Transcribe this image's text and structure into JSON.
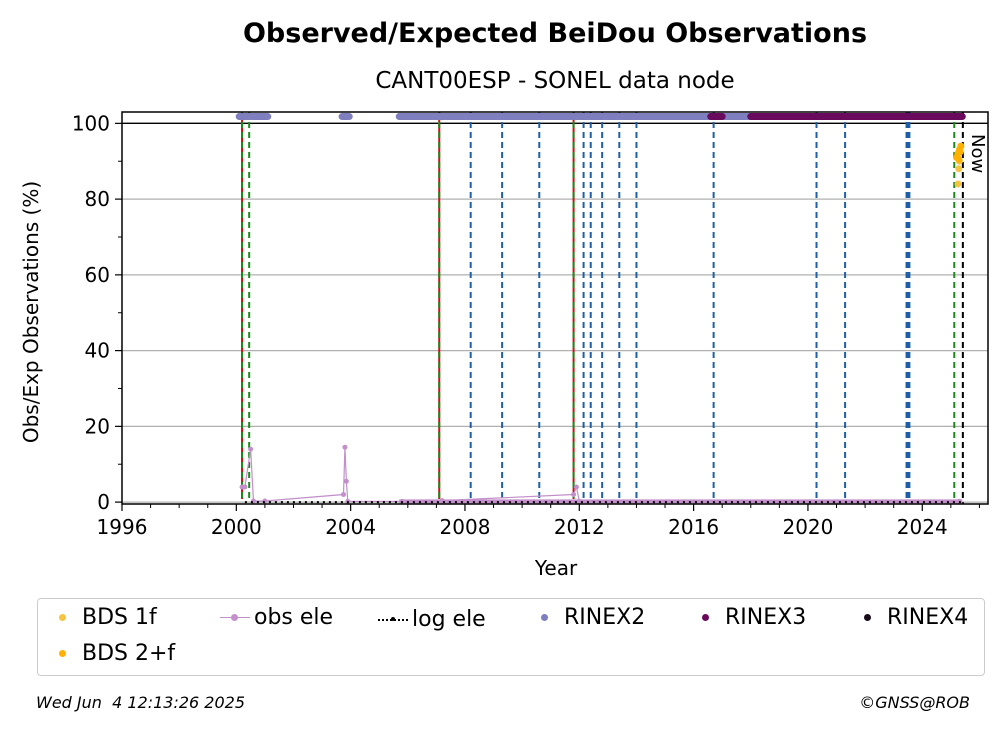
{
  "chart_data": {
    "type": "scatter",
    "title": "Observed/Expected BeiDou Observations",
    "subtitle": "CANT00ESP - SONEL data node",
    "xlabel": "Year",
    "ylabel": "Obs/Exp Observations (%)",
    "xlim": [
      1996,
      2026.3
    ],
    "ylim": [
      -0.5,
      103
    ],
    "x_ticks": [
      1996,
      2000,
      2004,
      2008,
      2012,
      2016,
      2020,
      2024
    ],
    "y_ticks": [
      0,
      20,
      40,
      60,
      80,
      100
    ],
    "grid": "horizontal",
    "now_label": "Now",
    "now_x": 2025.42,
    "vlines_green": [
      2000.45,
      2025.12
    ],
    "vlines_red_green": [
      2000.2,
      2007.1,
      2011.8
    ],
    "vlines_blue": [
      2008.2,
      2009.3,
      2010.6,
      2012.15,
      2012.4,
      2012.8,
      2013.4,
      2014.0,
      2016.7,
      2020.3,
      2021.3,
      2023.45,
      2023.5,
      2023.55
    ],
    "series": [
      {
        "name": "BDS 1f",
        "color": "#f5c542",
        "points": [
          [
            2025.25,
            84
          ],
          [
            2025.28,
            88
          ],
          [
            2025.3,
            90
          ]
        ]
      },
      {
        "name": "obs ele",
        "color": "#c28fcb",
        "points": [
          [
            2000.2,
            4
          ],
          [
            2000.3,
            4
          ],
          [
            2000.5,
            14
          ],
          [
            2000.6,
            0.3
          ],
          [
            2001.0,
            0.3
          ],
          [
            2003.75,
            2
          ],
          [
            2003.8,
            14.5
          ],
          [
            2003.85,
            5.5
          ],
          [
            2003.9,
            0.2
          ],
          [
            2005.8,
            0.2
          ],
          [
            2007.2,
            0.4
          ],
          [
            2011.8,
            2
          ],
          [
            2011.9,
            4
          ],
          [
            2012.0,
            0.2
          ],
          [
            2025.3,
            0.2
          ]
        ]
      },
      {
        "name": "log ele",
        "color": "#000000",
        "points": [
          [
            2000.3,
            0
          ],
          [
            2025.4,
            0
          ]
        ]
      },
      {
        "name": "RINEX2",
        "color": "#7f7fbf",
        "ranges": [
          [
            2000.1,
            2001.1
          ],
          [
            2003.7,
            2003.95
          ],
          [
            2005.7,
            2018.2
          ]
        ],
        "y": 101.8
      },
      {
        "name": "RINEX3",
        "color": "#6a0a5c",
        "ranges": [
          [
            2016.6,
            2017.0
          ],
          [
            2018.0,
            2025.4
          ]
        ],
        "y": 101.8
      },
      {
        "name": "RINEX4",
        "color": "#1a0b1a",
        "ranges": [],
        "y": 101.8
      },
      {
        "name": "BDS 2+f",
        "color": "#ffb000",
        "points": [
          [
            2025.2,
            91
          ],
          [
            2025.25,
            92
          ],
          [
            2025.3,
            93
          ],
          [
            2025.35,
            94
          ],
          [
            2025.28,
            90.5
          ],
          [
            2025.33,
            92.5
          ]
        ]
      }
    ]
  },
  "legend": {
    "items": [
      {
        "label": "BDS 1f",
        "color": "#f5c542",
        "kind": "dot"
      },
      {
        "label": "obs ele",
        "color": "#c28fcb",
        "kind": "line-dot"
      },
      {
        "label": "log ele",
        "color": "#000000",
        "kind": "dotted"
      },
      {
        "label": "RINEX2",
        "color": "#7f7fbf",
        "kind": "dot"
      },
      {
        "label": "RINEX3",
        "color": "#6a0a5c",
        "kind": "dot"
      },
      {
        "label": "RINEX4",
        "color": "#1a0b1a",
        "kind": "dot"
      },
      {
        "label": "BDS 2+f",
        "color": "#ffb000",
        "kind": "dot"
      }
    ]
  },
  "footer": {
    "timestamp": "Wed Jun  4 12:13:26 2025",
    "credit": "©GNSS@ROB"
  }
}
